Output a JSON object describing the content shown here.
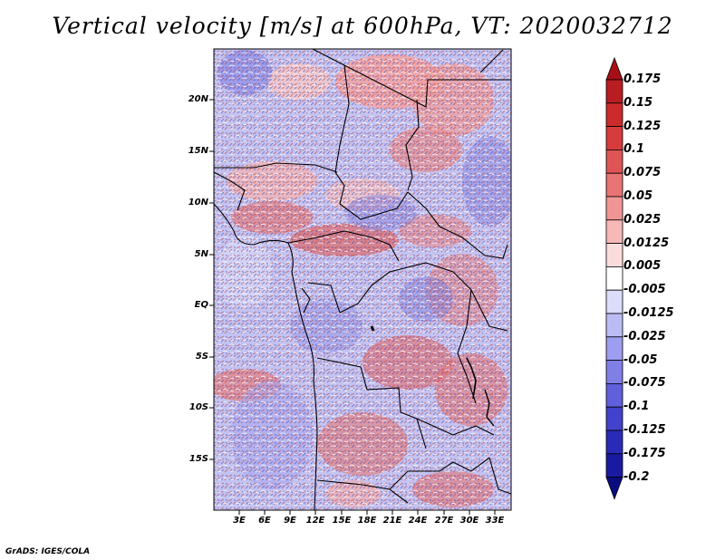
{
  "title": "Vertical velocity [m/s] at 600hPa, VT: 2020032712",
  "footer": "GrADS: IGES/COLA",
  "map": {
    "lat_labels": [
      "20N",
      "15N",
      "10N",
      "5N",
      "EQ",
      "5S",
      "10S",
      "15S"
    ],
    "lon_labels": [
      "3E",
      "6E",
      "9E",
      "12E",
      "15E",
      "18E",
      "21E",
      "24E",
      "27E",
      "30E",
      "33E"
    ]
  },
  "colorbar": {
    "labels": [
      "0.175",
      "0.15",
      "0.125",
      "0.1",
      "0.075",
      "0.05",
      "0.025",
      "0.0125",
      "0.005",
      "-0.005",
      "-0.0125",
      "-0.025",
      "-0.05",
      "-0.075",
      "-0.1",
      "-0.125",
      "-0.175",
      "-0.2"
    ],
    "colors": [
      "#a50f15",
      "#b81d22",
      "#cb2b2b",
      "#d63c3c",
      "#df5555",
      "#e87474",
      "#f09595",
      "#f7b8b8",
      "#fbdcdc",
      "#ffffff",
      "#dcdcfb",
      "#bcbcf5",
      "#9e9ef0",
      "#7f7fe6",
      "#6060dc",
      "#4242cc",
      "#2a2ab8",
      "#1a1aa0",
      "#0b0b82"
    ]
  }
}
